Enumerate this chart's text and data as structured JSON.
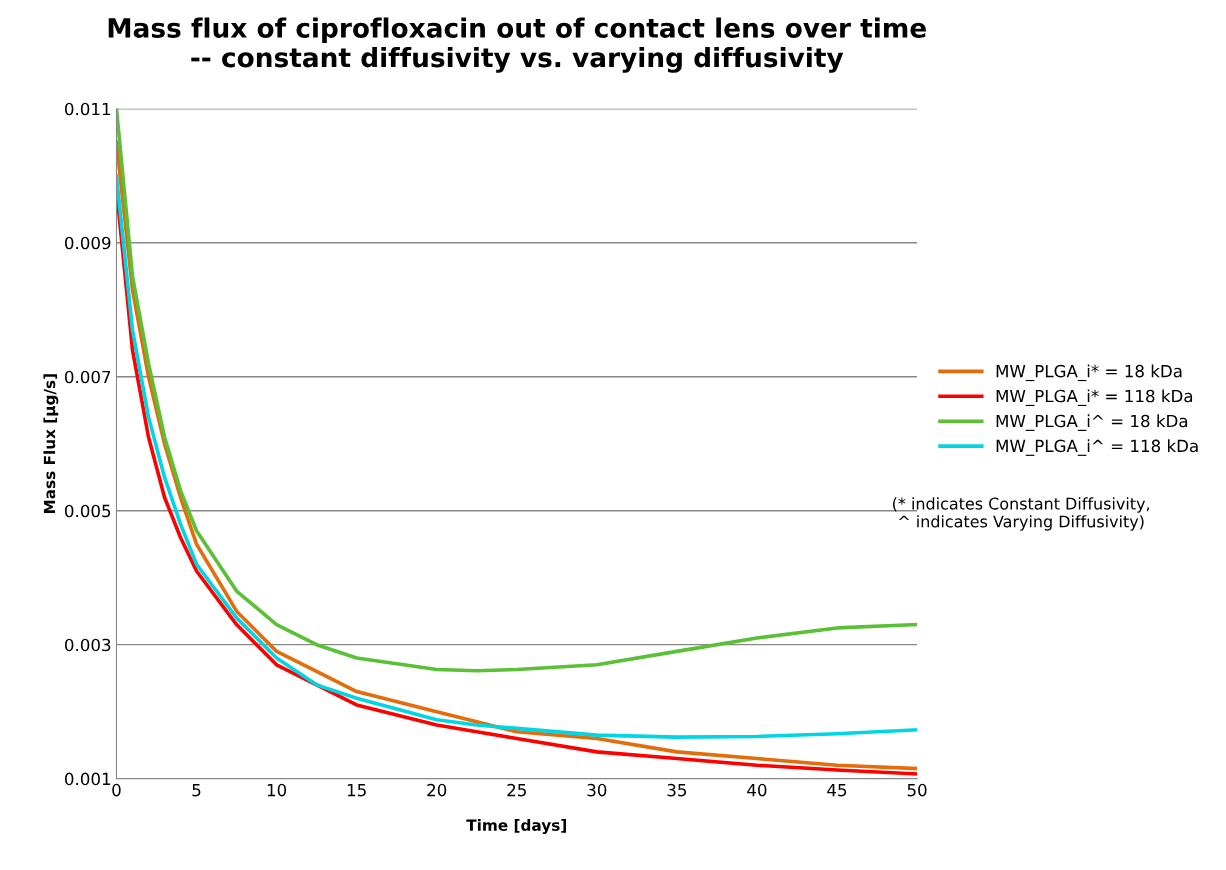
{
  "chart_data": {
    "type": "line",
    "title": "Mass flux of ciprofloxacin out of contact lens over time\n-- constant diffusivity vs. varying diffusivity",
    "xlabel": "Time [days]",
    "ylabel": "Mass Flux [µg/s]",
    "x": [
      0,
      1,
      2,
      3,
      4,
      5,
      7.5,
      10,
      12.5,
      15,
      20,
      22.5,
      25,
      30,
      35,
      40,
      45,
      50
    ],
    "series": [
      {
        "name": "MW_PLGA_i* = 18 kDa",
        "color": "#e46c0a",
        "values": [
          0.0105,
          0.0083,
          0.007,
          0.006,
          0.0052,
          0.0045,
          0.0035,
          0.0029,
          0.0026,
          0.0023,
          0.002,
          0.00185,
          0.0017,
          0.0016,
          0.0014,
          0.0013,
          0.0012,
          0.00115
        ]
      },
      {
        "name": "MW_PLGA_i* = 118 kDa",
        "color": "#ff0000",
        "values": [
          0.0098,
          0.0074,
          0.0061,
          0.0052,
          0.0046,
          0.0041,
          0.0033,
          0.0027,
          0.0024,
          0.0021,
          0.0018,
          0.0017,
          0.0016,
          0.0014,
          0.0013,
          0.0012,
          0.00113,
          0.00107
        ]
      },
      {
        "name": "MW_PLGA_i^ = 18 kDa",
        "color": "#5ac036",
        "values": [
          0.011,
          0.0085,
          0.0072,
          0.0061,
          0.0053,
          0.0047,
          0.0038,
          0.0033,
          0.003,
          0.0028,
          0.00263,
          0.00261,
          0.00263,
          0.0027,
          0.0029,
          0.0031,
          0.00325,
          0.0033
        ]
      },
      {
        "name": "MW_PLGA_i^ = 118 kDa",
        "color": "#00d5e5",
        "values": [
          0.01,
          0.0077,
          0.0064,
          0.0055,
          0.0048,
          0.0042,
          0.0034,
          0.0028,
          0.0024,
          0.0022,
          0.00188,
          0.0018,
          0.00175,
          0.00165,
          0.00162,
          0.00163,
          0.00167,
          0.00173
        ]
      }
    ],
    "xlim": [
      0,
      50
    ],
    "xticks": [
      0,
      5,
      10,
      15,
      20,
      25,
      30,
      35,
      40,
      45,
      50
    ],
    "ylim": [
      0.001,
      0.011
    ],
    "yticks": [
      0.001,
      0.003,
      0.005,
      0.007,
      0.009,
      0.011
    ],
    "grid": "y",
    "legend": "right",
    "marker": "none",
    "line_style": "solid",
    "annotations": [
      "(* indicates Constant Diffusivity,\n^ indicates Varying Diffusivity)"
    ]
  }
}
